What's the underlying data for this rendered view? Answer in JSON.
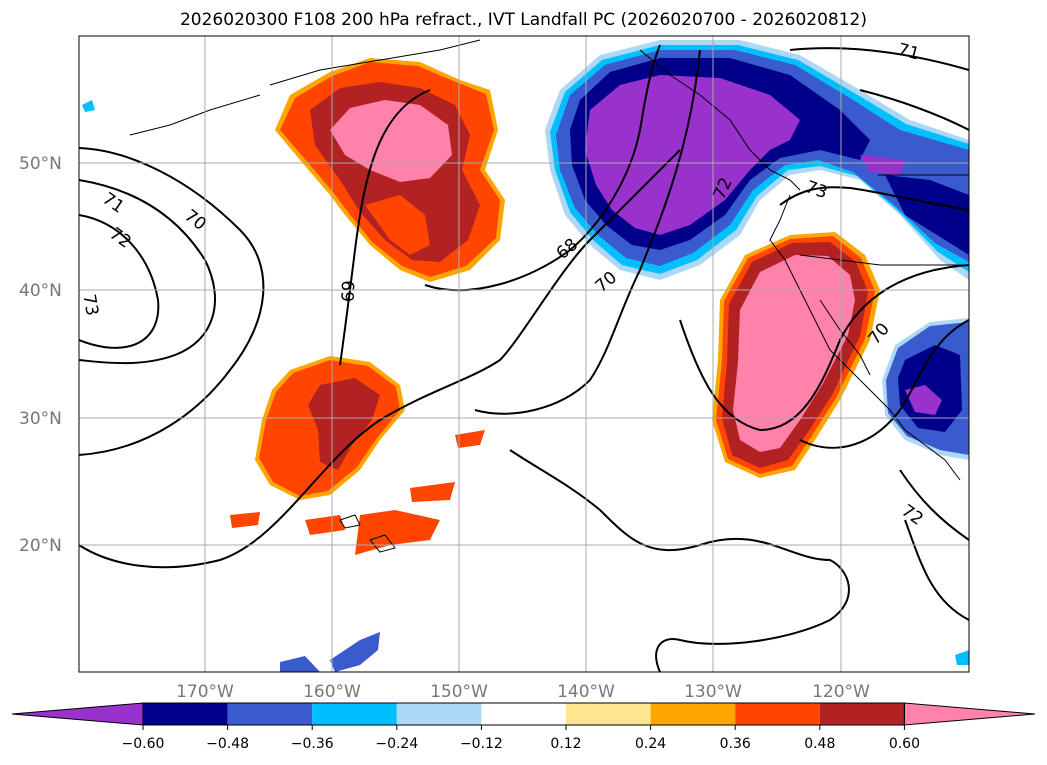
{
  "title": "2026020300 F108 200 hPa refract., IVT Landfall PC (2026020700 - 2026020812)",
  "map": {
    "lat_labels": [
      "50°N",
      "40°N",
      "30°N",
      "20°N"
    ],
    "lon_labels": [
      "170°W",
      "160°W",
      "150°W",
      "140°W",
      "130°W",
      "120°W"
    ],
    "contour_labels": [
      "71",
      "70",
      "72",
      "73",
      "69",
      "68",
      "70",
      "72",
      "73",
      "71",
      "70",
      "72"
    ]
  },
  "colorbar": {
    "ticks": [
      "−0.60",
      "−0.48",
      "−0.36",
      "−0.24",
      "−0.12",
      "0.12",
      "0.24",
      "0.36",
      "0.48",
      "0.60"
    ],
    "colors": [
      "#9932cc",
      "#00008b",
      "#3a5bcd",
      "#00bfff",
      "#add8f5",
      "#ffffff",
      "#ffe58f",
      "#ffa500",
      "#ff4500",
      "#b22222",
      "#ff82ab"
    ]
  }
}
